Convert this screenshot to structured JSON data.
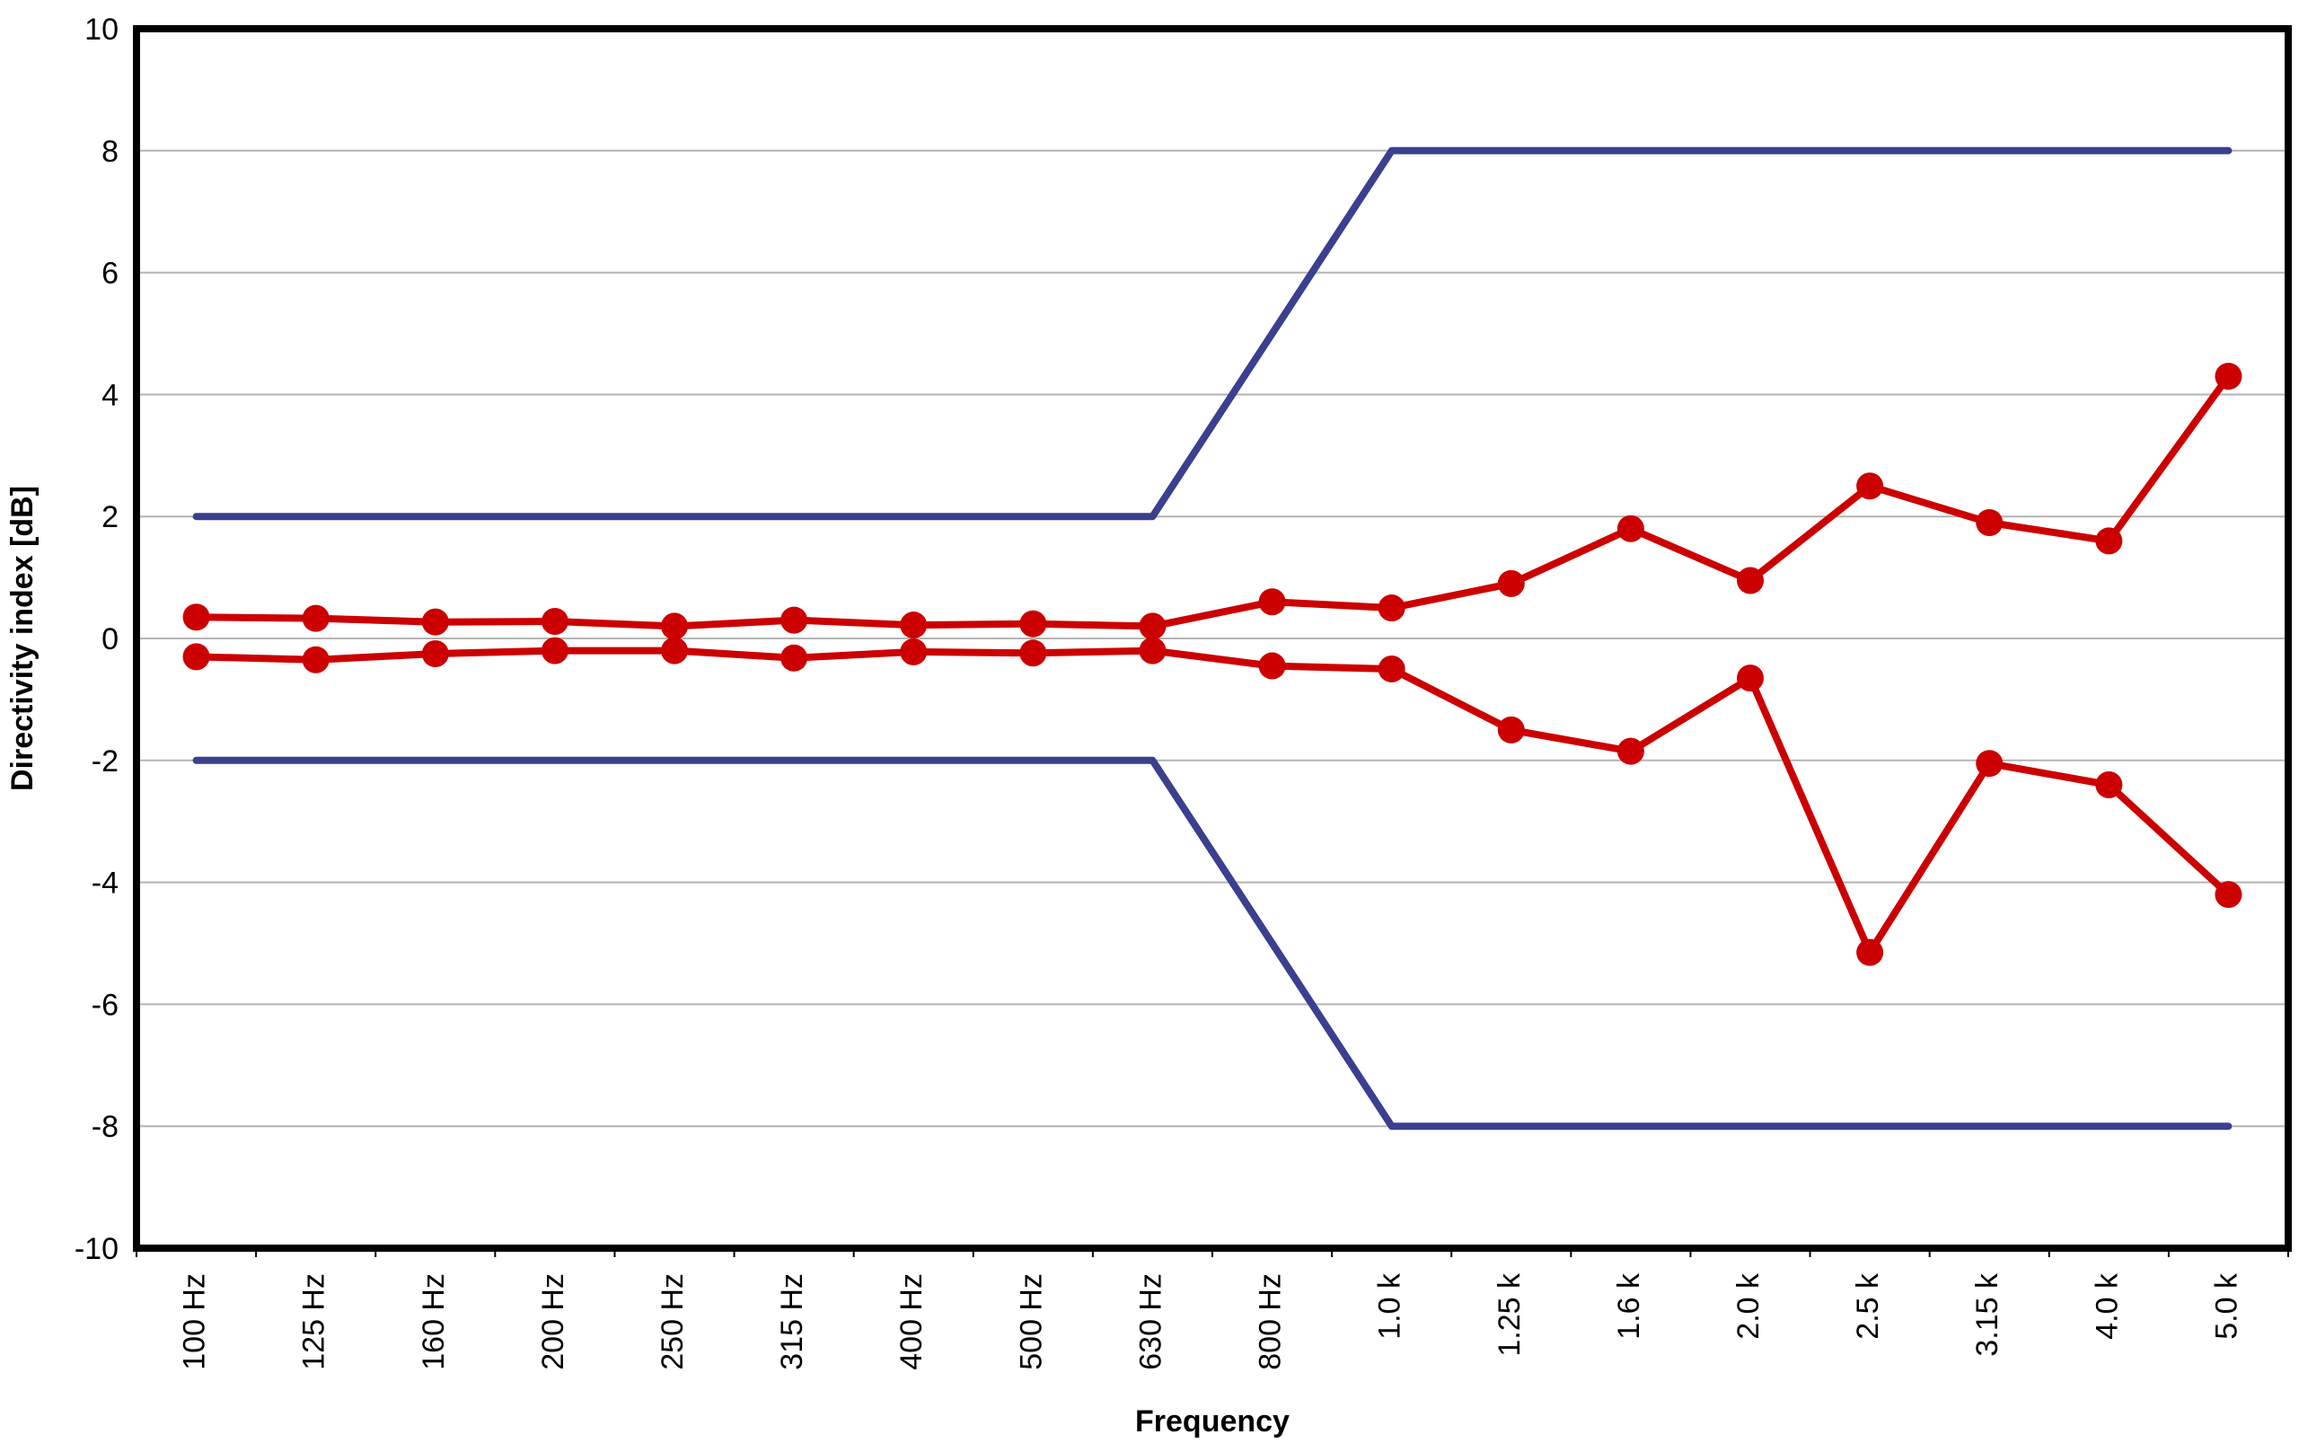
{
  "chart_data": {
    "type": "line",
    "title": "",
    "xlabel": "Frequency",
    "ylabel": "Directivity index [dB]",
    "ylim": [
      -10,
      10
    ],
    "yticks": [
      "10",
      "8",
      "6",
      "4",
      "2",
      "0",
      "-2",
      "-4",
      "-6",
      "-8",
      "-10"
    ],
    "ytick_values": [
      10,
      8,
      6,
      4,
      2,
      0,
      -2,
      -4,
      -6,
      -8,
      -10
    ],
    "categories": [
      "100 Hz",
      "125 Hz",
      "160 Hz",
      "200 Hz",
      "250 Hz",
      "315 Hz",
      "400 Hz",
      "500 Hz",
      "630 Hz",
      "800 Hz",
      "1.0 k",
      "1.25 k",
      "1.6 k",
      "2.0 k",
      "2.5 k",
      "3.15 k",
      "4.0 k",
      "5.0 k"
    ],
    "grid": "horizontal",
    "legend": "none",
    "series": [
      {
        "role": "upper-limit",
        "color": "#3b3f8f",
        "markers": false,
        "values": [
          2,
          2,
          2,
          2,
          2,
          2,
          2,
          2,
          2,
          5,
          8,
          8,
          8,
          8,
          8,
          8,
          8,
          8
        ]
      },
      {
        "role": "lower-limit",
        "color": "#3b3f8f",
        "markers": false,
        "values": [
          -2,
          -2,
          -2,
          -2,
          -2,
          -2,
          -2,
          -2,
          -2,
          -5,
          -8,
          -8,
          -8,
          -8,
          -8,
          -8,
          -8,
          -8
        ]
      },
      {
        "role": "measured-upper",
        "color": "#cc0000",
        "markers": true,
        "values": [
          0.35,
          0.33,
          0.27,
          0.28,
          0.2,
          0.3,
          0.22,
          0.24,
          0.2,
          0.6,
          0.5,
          0.9,
          1.8,
          0.95,
          2.5,
          1.9,
          1.6,
          4.3
        ]
      },
      {
        "role": "measured-lower",
        "color": "#cc0000",
        "markers": true,
        "values": [
          -0.3,
          -0.35,
          -0.25,
          -0.2,
          -0.2,
          -0.32,
          -0.22,
          -0.24,
          -0.2,
          -0.45,
          -0.5,
          -1.5,
          -1.85,
          -0.65,
          -5.15,
          -2.05,
          -2.4,
          -4.2
        ]
      }
    ]
  }
}
